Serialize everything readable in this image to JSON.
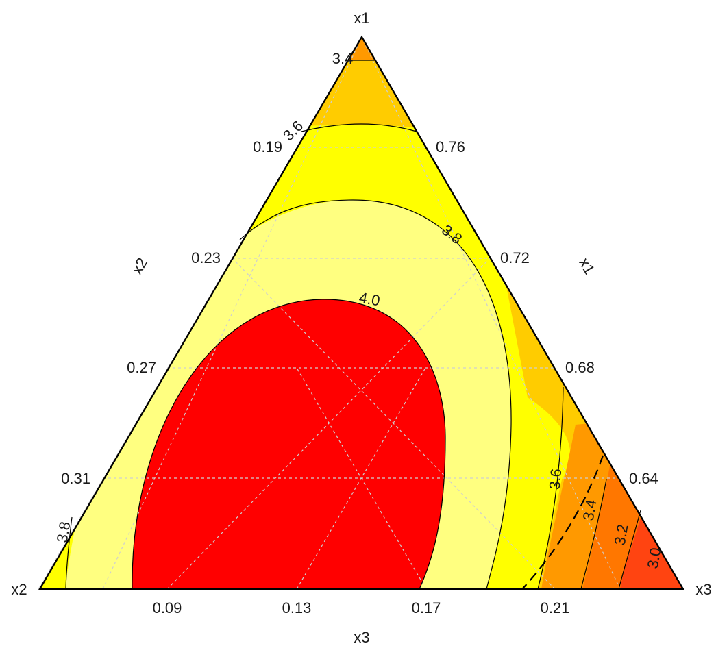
{
  "chart_data": {
    "type": "ternary-contour",
    "vertices": {
      "top": "x1",
      "left": "x2",
      "right": "x3"
    },
    "axis_titles": {
      "bottom": "x3",
      "left": "x2",
      "right": "x1"
    },
    "ticks": {
      "x3": [
        "0.09",
        "0.13",
        "0.17",
        "0.21"
      ],
      "x2": [
        "0.19",
        "0.23",
        "0.27",
        "0.31"
      ],
      "x1": [
        "0.76",
        "0.72",
        "0.68",
        "0.64"
      ]
    },
    "contour_levels": [
      "3.0",
      "3.2",
      "3.4",
      "3.6",
      "3.8",
      "4.0"
    ],
    "contour_labels": [
      {
        "text": "3.4",
        "near": "top apex"
      },
      {
        "text": "3.6",
        "near": "upper left edge"
      },
      {
        "text": "3.8",
        "near": "upper right of ellipse"
      },
      {
        "text": "4.0",
        "near": "top of red region"
      },
      {
        "text": "3.8",
        "near": "lower left corner"
      },
      {
        "text": "3.6",
        "near": "right side"
      },
      {
        "text": "3.4",
        "near": "right side"
      },
      {
        "text": "3.2",
        "near": "right corner"
      },
      {
        "text": "3.0",
        "near": "right corner"
      }
    ],
    "fill_colors": {
      "above_4.0": "#ff0000",
      "3.8_to_4.0": "#ffff80",
      "3.6_to_3.8": "#ffff00",
      "3.4_to_3.6": "#ffcc00",
      "3.2_to_3.4": "#ff9900",
      "3.0_to_3.2": "#ff7700",
      "below_3.0": "#ff4411"
    },
    "grid": true,
    "grid_style": "dashed"
  }
}
